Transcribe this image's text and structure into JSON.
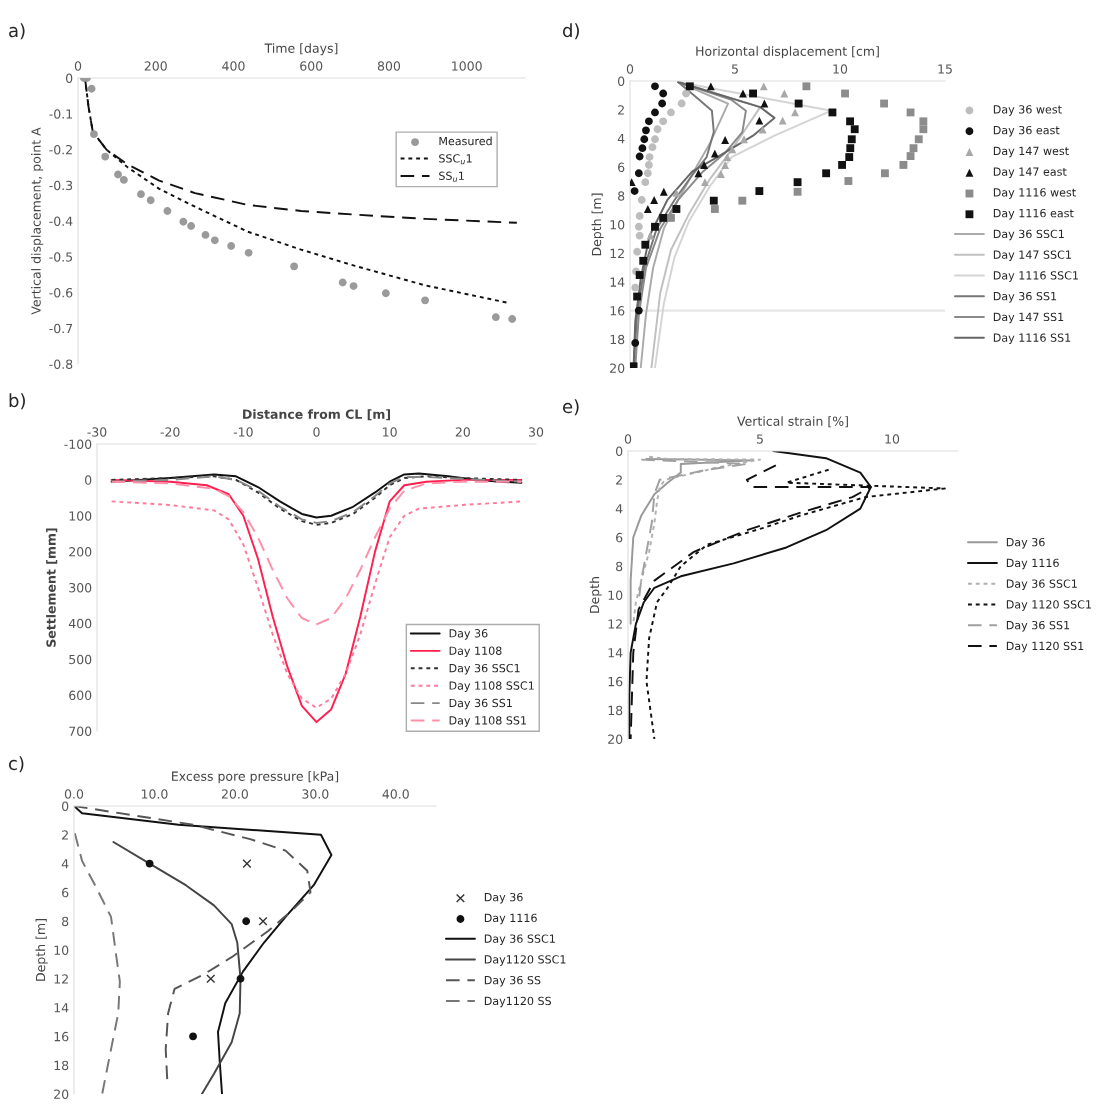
{
  "chart_data": [
    {
      "type": "line",
      "title": "a)",
      "xlabel": "Time [days]",
      "ylabel": "Vertical displacement, point A",
      "xlim": [
        0,
        1150
      ],
      "xticks": [
        0,
        200,
        400,
        600,
        800,
        1000
      ],
      "ylim": [
        -0.8,
        0
      ],
      "yticks": [
        -0.8,
        -0.7,
        -0.6,
        -0.5,
        -0.4,
        -0.3,
        -0.2,
        -0.1,
        0
      ],
      "legend": "top right",
      "series": [
        {
          "name": "Measured",
          "type": "scatter",
          "marker": "circle",
          "color": "#9a9a9a",
          "x": [
            15,
            23,
            35,
            41,
            70,
            103,
            118,
            162,
            187,
            230,
            271,
            291,
            328,
            352,
            394,
            439,
            556,
            681,
            709,
            792,
            893,
            1070,
            1075,
            1117
          ],
          "values": [
            0,
            0,
            -0.03,
            -0.157,
            -0.22,
            -0.27,
            -0.285,
            -0.325,
            -0.342,
            -0.372,
            -0.402,
            -0.414,
            -0.439,
            -0.454,
            -0.47,
            -0.489,
            -0.527,
            -0.572,
            -0.582,
            -0.602,
            -0.622,
            null,
            -0.669,
            -0.674
          ]
        },
        {
          "name": "SSC$_{u}$1",
          "type": "line",
          "line_style": "dotted",
          "color": "#111111",
          "x": [
            18,
            27,
            38,
            73,
            128,
            209,
            301,
            437,
            574,
            711,
            893,
            1111
          ],
          "values": [
            0,
            -0.08,
            -0.15,
            -0.2,
            -0.25,
            -0.31,
            -0.36,
            -0.43,
            -0.48,
            -0.525,
            -0.58,
            -0.63
          ]
        },
        {
          "name": "SS$_{u}$1",
          "type": "line",
          "line_style": "dashed",
          "color": "#111111",
          "x": [
            18,
            27,
            38,
            73,
            128,
            209,
            301,
            437,
            574,
            711,
            893,
            1129
          ],
          "values": [
            0,
            -0.08,
            -0.15,
            -0.2,
            -0.242,
            -0.287,
            -0.322,
            -0.355,
            -0.372,
            -0.382,
            -0.394,
            -0.405
          ]
        }
      ]
    },
    {
      "type": "line",
      "title": "b)",
      "xlabel": "Distance from CL [m]",
      "ylabel": "Settlement [mm]",
      "xlim": [
        -30,
        30
      ],
      "xticks": [
        -30,
        -20,
        -10,
        0,
        10,
        20,
        30
      ],
      "ylim": [
        700,
        -100
      ],
      "yticks": [
        -100,
        0,
        100,
        200,
        300,
        400,
        500,
        600,
        700
      ],
      "legend": "bottom right",
      "series": [
        {
          "name": "Day 36",
          "type": "line",
          "line_style": "solid",
          "color": "#111111",
          "x": [
            -28,
            -20,
            -14,
            -11,
            -8,
            -5,
            -2,
            0,
            2,
            5,
            8,
            10,
            12,
            14,
            18,
            22,
            25,
            28
          ],
          "values": [
            5,
            -5,
            -15,
            -10,
            20,
            60,
            95,
            105,
            100,
            75,
            35,
            5,
            -15,
            -18,
            -10,
            0,
            5,
            8
          ]
        },
        {
          "name": "Day 1108",
          "type": "line",
          "line_style": "solid",
          "color": "#ff2050",
          "x": [
            -28,
            -20,
            -15,
            -12,
            -10,
            -8,
            -6,
            -4,
            -2,
            0,
            2,
            4,
            6,
            8,
            10,
            12,
            15,
            20,
            28
          ],
          "values": [
            0,
            5,
            15,
            40,
            100,
            220,
            380,
            520,
            630,
            675,
            640,
            540,
            380,
            200,
            60,
            15,
            5,
            0,
            0
          ]
        },
        {
          "name": "Day 36 SSC1",
          "type": "line",
          "line_style": "dotted",
          "color": "#333333",
          "x": [
            -28,
            -20,
            -14,
            -11,
            -8,
            -5,
            -2,
            0,
            2,
            5,
            8,
            10,
            12,
            15,
            20,
            28
          ],
          "values": [
            0,
            -5,
            -10,
            0,
            35,
            80,
            115,
            125,
            120,
            95,
            50,
            15,
            -5,
            -10,
            -5,
            0
          ]
        },
        {
          "name": "Day 1108 SSC1",
          "type": "line",
          "line_style": "dotted",
          "color": "#ff7a9a",
          "x": [
            -28,
            -20,
            -14,
            -12,
            -10,
            -8,
            -6,
            -4,
            -2,
            0,
            2,
            4,
            6,
            8,
            10,
            12,
            14,
            20,
            28
          ],
          "values": [
            60,
            70,
            85,
            110,
            180,
            300,
            430,
            540,
            610,
            635,
            610,
            540,
            430,
            290,
            160,
            100,
            80,
            70,
            60
          ]
        },
        {
          "name": "Day 36 SS1",
          "type": "line",
          "line_style": "dashed",
          "color": "#888888",
          "x": [
            -28,
            -20,
            -14,
            -11,
            -8,
            -5,
            -2,
            0,
            2,
            5,
            8,
            10,
            12,
            15,
            20,
            28
          ],
          "values": [
            5,
            0,
            -10,
            0,
            30,
            75,
            110,
            120,
            115,
            90,
            45,
            10,
            -8,
            -8,
            -3,
            5
          ]
        },
        {
          "name": "Day 1108 SS1",
          "type": "line",
          "line_style": "dashed",
          "color": "#ff8fa8",
          "x": [
            -28,
            -20,
            -14,
            -12,
            -10,
            -8,
            -6,
            -4,
            -2,
            0,
            2,
            4,
            6,
            8,
            10,
            12,
            15,
            20,
            28
          ],
          "values": [
            5,
            10,
            25,
            45,
            90,
            160,
            250,
            330,
            385,
            403,
            385,
            330,
            250,
            160,
            80,
            30,
            10,
            5,
            5
          ]
        }
      ]
    },
    {
      "type": "line",
      "title": "c)",
      "xlabel": "Excess pore pressure [kPa]",
      "ylabel": "Depth [m]",
      "xlim": [
        0,
        45
      ],
      "xticks": [
        {
          "value": 0,
          "label": "0.0"
        },
        {
          "value": 10,
          "label": "10.0"
        },
        {
          "value": 20,
          "label": "20.0"
        },
        {
          "value": 30,
          "label": "30.0"
        },
        {
          "value": 40,
          "label": "40.0"
        }
      ],
      "ylim": [
        20,
        0
      ],
      "yticks": [
        0,
        2,
        4,
        6,
        8,
        10,
        12,
        14,
        16,
        18,
        20
      ],
      "legend": "right",
      "series": [
        {
          "name": "Day 36",
          "type": "scatter",
          "marker": "cross",
          "color": "#333333",
          "x": [
            21.5,
            23.5,
            17.0
          ],
          "values": [
            4,
            8,
            12
          ]
        },
        {
          "name": "Day 1116",
          "type": "scatter",
          "marker": "circle",
          "color": "#111111",
          "x": [
            9.4,
            21.4,
            20.7,
            14.8
          ],
          "values": [
            4,
            8,
            12,
            16
          ]
        },
        {
          "name": "Day 36 SSC1",
          "type": "line",
          "line_style": "solid",
          "color": "#111111",
          "x": [
            0,
            1,
            13,
            30.7,
            32,
            29.8,
            26.3,
            23.6,
            21,
            18.8,
            17.9,
            18.1,
            18.4
          ],
          "values": [
            0,
            0.5,
            1.3,
            2,
            3.4,
            5.5,
            7.7,
            9.5,
            11.5,
            13.7,
            15.7,
            17.6,
            20
          ]
        },
        {
          "name": "Day1120 SSC1",
          "type": "line",
          "line_style": "solid",
          "color": "#444444",
          "x": [
            4.9,
            9.4,
            13.9,
            17.4,
            19.6,
            20.3,
            20.7,
            20.6,
            19.6,
            17.4,
            15.9
          ],
          "values": [
            2.5,
            4,
            5.5,
            6.9,
            8.2,
            9.5,
            12,
            14.4,
            16.4,
            18.6,
            20
          ]
        },
        {
          "name": "Day 36 SS",
          "type": "line",
          "line_style": "dashed",
          "color": "#555555",
          "x": [
            0,
            14.8,
            21.9,
            26.3,
            29,
            29.4,
            27.2,
            24.1,
            19.6,
            16.1,
            12.5,
            11.7,
            11.4,
            11.6
          ],
          "values": [
            0,
            1.3,
            2.3,
            3.1,
            4.5,
            6,
            7.2,
            8.7,
            10.5,
            11.7,
            12.7,
            14.4,
            16.9,
            19.1
          ]
        },
        {
          "name": "Day1120 SS",
          "type": "line",
          "line_style": "dashed",
          "color": "#777777",
          "x": [
            0.1,
            1,
            2.8,
            4.6,
            5.2,
            5.7,
            5.5,
            4.6,
            3.5
          ],
          "values": [
            1.9,
            3.8,
            5.7,
            7.7,
            10.2,
            12.2,
            14.4,
            16.9,
            20
          ]
        }
      ]
    },
    {
      "type": "line",
      "title": "d)",
      "xlabel": "Horizontal displacement [cm]",
      "ylabel": "Depth [m]",
      "xlim": [
        0,
        15
      ],
      "xticks": [
        0,
        5,
        10,
        15
      ],
      "ylim": [
        20,
        0
      ],
      "yticks": [
        0,
        2,
        4,
        6,
        8,
        10,
        12,
        14,
        16,
        18,
        20
      ],
      "legend": "right",
      "ref_lines": [
        {
          "axis": "y",
          "value": 16,
          "color": "#e6e6e6"
        }
      ],
      "series": [
        {
          "name": "Day 36 west",
          "type": "scatter",
          "marker": "circle",
          "color": "#bdbdbd",
          "x": [
            2.67,
            2.46,
            1.95,
            1.58,
            1.31,
            1.19,
            1.07,
            0.93,
            0.9,
            0.85,
            0.73,
            0.56,
            0.46,
            0.42,
            0.46,
            0.34,
            0.29,
            0.25
          ],
          "values": [
            0.87,
            1.57,
            2.19,
            2.81,
            3.36,
            4.06,
            4.61,
            5.3,
            5.85,
            6.43,
            7.05,
            8.29,
            9.41,
            10.16,
            10.78,
            11.9,
            13.27,
            14.4
          ]
        },
        {
          "name": "Day 36 east",
          "type": "scatter",
          "marker": "circle",
          "color": "#111111",
          "x": [
            1.19,
            1.58,
            1.53,
            1.19,
            0.9,
            0.76,
            0.68,
            0.59,
            0.46,
            0.42,
            0.22,
            0.42,
            0.25
          ],
          "values": [
            0.37,
            0.87,
            1.57,
            2.19,
            2.81,
            3.44,
            4.06,
            4.68,
            5.26,
            6.43,
            7.67,
            16.0,
            18.26
          ]
        },
        {
          "name": "Day 147 west",
          "type": "scatter",
          "marker": "triangle",
          "color": "#a8a8a8",
          "x": [
            6.37,
            7.35,
            7.86,
            7.27,
            6.32,
            5.43,
            4.87,
            4.63,
            4.53,
            4.33,
            3.57,
            2.21,
            0.98
          ],
          "values": [
            0.37,
            0.87,
            2.19,
            2.76,
            3.39,
            4.06,
            4.76,
            5.3,
            5.85,
            6.48,
            7.05,
            7.8,
            10.78
          ]
        },
        {
          "name": "Day 147 east",
          "type": "scatter",
          "marker": "triangle",
          "color": "#111111",
          "x": [
            3.85,
            5.38,
            6.4,
            6.16,
            4.53,
            4.04,
            3.53,
            3.26,
            1.61,
            1.15,
            0.85,
            0.08
          ],
          "values": [
            0.37,
            0.87,
            1.57,
            2.76,
            4.11,
            5.06,
            5.85,
            6.43,
            7.72,
            8.29,
            8.92,
            7.05
          ]
        },
        {
          "name": "Day 1116 west",
          "type": "scatter",
          "marker": "square",
          "color": "#8c8c8c",
          "x": [
            8.4,
            10.24,
            12.1,
            13.36,
            13.97,
            13.97,
            13.75,
            13.5,
            13.36,
            13.02,
            12.14,
            10.4,
            7.98,
            5.35,
            4.04,
            1.95
          ],
          "values": [
            0.37,
            0.87,
            1.57,
            2.19,
            2.81,
            3.36,
            4.06,
            4.68,
            5.23,
            5.85,
            6.43,
            6.97,
            7.72,
            8.34,
            8.92,
            9.54
          ]
        },
        {
          "name": "Day 1116 east",
          "type": "scatter",
          "marker": "square",
          "color": "#111111",
          "x": [
            2.85,
            5.86,
            8.03,
            9.64,
            10.48,
            10.7,
            10.56,
            10.49,
            10.44,
            10.1,
            9.34,
            7.98,
            6.16,
            3.99,
            2.21,
            1.58,
            1.19,
            0.73,
            0.63,
            0.46,
            0.34,
            0.17
          ],
          "values": [
            0.37,
            0.87,
            1.57,
            2.19,
            2.81,
            3.36,
            4.06,
            4.68,
            5.3,
            5.85,
            6.43,
            7.05,
            7.67,
            8.34,
            8.92,
            9.54,
            10.16,
            11.41,
            12.53,
            13.52,
            15.02,
            19.88
          ]
        },
        {
          "name": "Day 36 SSC1",
          "type": "line",
          "line_style": "solid",
          "color": "#aaaaaa",
          "x": [
            2.29,
            4.67,
            3.82,
            3.14,
            2.29,
            1.61,
            1.1,
            0.76,
            0.51
          ],
          "values": [
            0.07,
            1.57,
            4.3,
            6.05,
            8.29,
            10.29,
            13.03,
            16.26,
            20
          ]
        },
        {
          "name": "Day 147 SSC1",
          "type": "line",
          "line_style": "solid",
          "color": "#c0c0c0",
          "x": [
            2.29,
            6.2,
            4.84,
            3.82,
            2.8,
            1.95,
            1.44,
            1.02
          ],
          "values": [
            0.07,
            1.82,
            4.8,
            6.8,
            9.29,
            11.78,
            14.77,
            20
          ]
        },
        {
          "name": "Day 1116 SSC1",
          "type": "line",
          "line_style": "solid",
          "color": "#d4d4d4",
          "x": [
            2.29,
            9.59,
            6.88,
            4.84,
            3.82,
            2.8,
            2.12,
            1.61,
            1.19
          ],
          "values": [
            0.07,
            2.07,
            3.81,
            5.3,
            7.3,
            9.79,
            12.28,
            15.52,
            20
          ]
        },
        {
          "name": "Day 36 SS1",
          "type": "line",
          "line_style": "solid",
          "color": "#777777",
          "x": [
            2.29,
            3.31,
            3.9,
            3.99,
            3.65,
            2.97,
            2.12,
            1.27,
            0.68,
            0.34,
            0.17
          ],
          "values": [
            0.07,
            1.32,
            2.07,
            3.56,
            5.3,
            6.55,
            8.29,
            10.29,
            13.03,
            16.26,
            20
          ]
        },
        {
          "name": "Day 147 SS1",
          "type": "line",
          "line_style": "solid",
          "color": "#8a8a8a",
          "x": [
            2.29,
            4.84,
            5.52,
            5.35,
            4.5,
            3.48,
            2.29,
            1.44,
            0.76,
            0.42,
            0.25
          ],
          "values": [
            0.07,
            1.32,
            2.07,
            3.56,
            5.06,
            6.3,
            8.29,
            10.29,
            13.03,
            16.26,
            20
          ]
        },
        {
          "name": "Day 1116 SS1",
          "type": "line",
          "line_style": "solid",
          "color": "#666666",
          "x": [
            2.29,
            6.2,
            6.88,
            5.86,
            4.16,
            2.97,
            1.78,
            0.93,
            0.51,
            0.25,
            0.17
          ],
          "values": [
            0.07,
            1.82,
            2.57,
            3.81,
            5.3,
            6.3,
            8.29,
            10.78,
            13.77,
            16.76,
            20
          ]
        }
      ]
    },
    {
      "type": "line",
      "title": "e)",
      "xlabel": "Vertical strain [%]",
      "ylabel": "Depth",
      "xlim": [
        0,
        12.5
      ],
      "xticks": [
        0,
        5,
        10
      ],
      "ylim": [
        20,
        0
      ],
      "yticks": [
        0,
        2,
        4,
        6,
        8,
        10,
        12,
        14,
        16,
        18,
        20
      ],
      "legend": "right",
      "series": [
        {
          "name": "Day 36",
          "type": "line",
          "line_style": "solid",
          "color": "#999999",
          "x": [
            0.7,
            4.7,
            2.0,
            2.0,
            1.5,
            1.0,
            0.5,
            0.2,
            0.1,
            0.1
          ],
          "values": [
            0.55,
            0.65,
            0.9,
            1.5,
            2.2,
            3.0,
            4.5,
            6,
            9,
            12
          ]
        },
        {
          "name": "Day 1116",
          "type": "line",
          "line_style": "solid",
          "color": "#111111",
          "x": [
            5.5,
            7.5,
            8.8,
            9.2,
            8.8,
            7.5,
            6,
            4.0,
            2,
            1,
            0.6,
            0.3,
            0.1,
            0.05,
            0.05
          ],
          "values": [
            0,
            0.5,
            1.5,
            2.5,
            4,
            5.5,
            6.7,
            7.8,
            8.7,
            9.5,
            10.5,
            12,
            14,
            17,
            20
          ]
        },
        {
          "name": "Day 36 SSC1",
          "type": "line",
          "line_style": "dotted",
          "color": "#b0b0b0",
          "x": [
            0.8,
            1.5,
            5,
            3.5,
            1.4,
            1.2,
            1.1,
            1.0,
            0.8,
            0.5,
            0.3,
            0.2
          ],
          "values": [
            0.4,
            0.55,
            0.6,
            1.1,
            2,
            2.5,
            3.5,
            5,
            7,
            9,
            10.5,
            12
          ]
        },
        {
          "name": "Day 1120 SSC1",
          "type": "line",
          "line_style": "dotted",
          "color": "#111111",
          "x": [
            7.6,
            6.0,
            12.0,
            9.0,
            6.5,
            5.2,
            3,
            2,
            1.5,
            1.1,
            0.8,
            0.7,
            1.0
          ],
          "values": [
            1.3,
            2.2,
            2.6,
            3.2,
            4.5,
            5.3,
            6.5,
            8,
            9.5,
            10.5,
            13,
            16,
            20
          ]
        },
        {
          "name": "Day 36 SS1",
          "type": "line",
          "line_style": "dashed",
          "color": "#a0a0a0",
          "x": [
            0.5,
            4.5,
            3.0,
            1.2,
            1.0,
            0.9,
            0.7,
            0.5,
            0.4
          ],
          "values": [
            0.6,
            0.9,
            1.3,
            2,
            3,
            5,
            7,
            9,
            10.5
          ]
        },
        {
          "name": "Day 1120 SS1",
          "type": "line",
          "line_style": "dashed",
          "color": "#111111",
          "x": [
            5.6,
            4.5,
            4.7,
            9.2,
            8.5,
            6.5,
            4.5,
            2.5,
            1.0,
            0.4,
            0.2,
            0.1
          ],
          "values": [
            1.0,
            2.0,
            2.5,
            2.5,
            3.2,
            4.3,
            5.5,
            7,
            9,
            11,
            14,
            20
          ]
        }
      ]
    }
  ]
}
